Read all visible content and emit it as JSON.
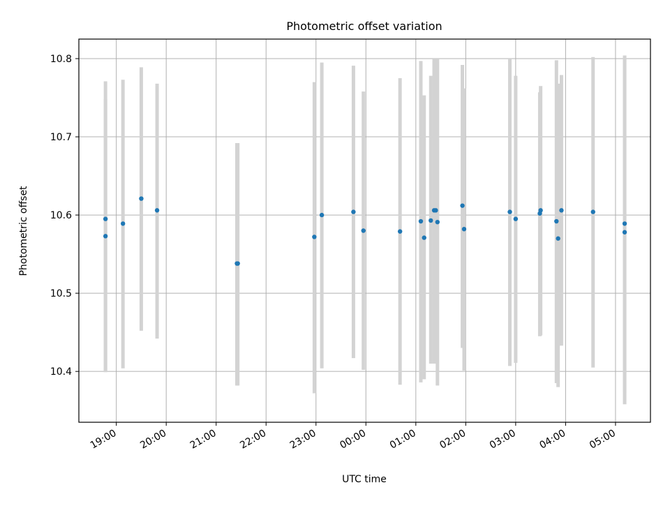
{
  "chart_data": {
    "type": "scatter",
    "title": "Photometric offset variation",
    "xlabel": "UTC time",
    "ylabel": "Photometric offset",
    "x_ticks": [
      "19:00",
      "20:00",
      "21:00",
      "22:00",
      "23:00",
      "00:00",
      "01:00",
      "02:00",
      "03:00",
      "04:00",
      "05:00"
    ],
    "y_ticks": [
      "10.4",
      "10.5",
      "10.6",
      "10.7",
      "10.8"
    ],
    "ylim": [
      10.335,
      10.825
    ],
    "xlim": [
      "18:15",
      "05:42"
    ],
    "grid": true,
    "marker_color": "#1f77b4",
    "errorbar_color": "#d3d3d3",
    "points": [
      {
        "t": "18:47",
        "y": 10.573,
        "lo": 10.399,
        "hi": 10.771
      },
      {
        "t": "18:47",
        "y": 10.595,
        "lo": 10.4,
        "hi": 10.748
      },
      {
        "t": "19:08",
        "y": 10.589,
        "lo": 10.404,
        "hi": 10.773
      },
      {
        "t": "19:30",
        "y": 10.621,
        "lo": 10.452,
        "hi": 10.789
      },
      {
        "t": "19:49",
        "y": 10.606,
        "lo": 10.442,
        "hi": 10.768
      },
      {
        "t": "21:25",
        "y": 10.538,
        "lo": 10.382,
        "hi": 10.692
      },
      {
        "t": "21:26",
        "y": 10.538,
        "lo": 10.382,
        "hi": 10.692
      },
      {
        "t": "22:58",
        "y": 10.572,
        "lo": 10.372,
        "hi": 10.77
      },
      {
        "t": "23:07",
        "y": 10.6,
        "lo": 10.404,
        "hi": 10.795
      },
      {
        "t": "23:45",
        "y": 10.604,
        "lo": 10.417,
        "hi": 10.791
      },
      {
        "t": "23:57",
        "y": 10.58,
        "lo": 10.402,
        "hi": 10.758
      },
      {
        "t": "00:41",
        "y": 10.579,
        "lo": 10.383,
        "hi": 10.775
      },
      {
        "t": "01:06",
        "y": 10.592,
        "lo": 10.386,
        "hi": 10.797
      },
      {
        "t": "01:10",
        "y": 10.571,
        "lo": 10.39,
        "hi": 10.753
      },
      {
        "t": "01:18",
        "y": 10.593,
        "lo": 10.41,
        "hi": 10.778
      },
      {
        "t": "01:22",
        "y": 10.606,
        "lo": 10.41,
        "hi": 10.8
      },
      {
        "t": "01:24",
        "y": 10.606,
        "lo": 10.412,
        "hi": 10.8
      },
      {
        "t": "01:26",
        "y": 10.591,
        "lo": 10.382,
        "hi": 10.8
      },
      {
        "t": "01:56",
        "y": 10.612,
        "lo": 10.43,
        "hi": 10.792
      },
      {
        "t": "01:58",
        "y": 10.582,
        "lo": 10.401,
        "hi": 10.762
      },
      {
        "t": "02:53",
        "y": 10.604,
        "lo": 10.407,
        "hi": 10.8
      },
      {
        "t": "03:00",
        "y": 10.595,
        "lo": 10.411,
        "hi": 10.778
      },
      {
        "t": "03:29",
        "y": 10.602,
        "lo": 10.445,
        "hi": 10.757
      },
      {
        "t": "03:30",
        "y": 10.606,
        "lo": 10.446,
        "hi": 10.765
      },
      {
        "t": "03:49",
        "y": 10.592,
        "lo": 10.385,
        "hi": 10.798
      },
      {
        "t": "03:51",
        "y": 10.57,
        "lo": 10.38,
        "hi": 10.768
      },
      {
        "t": "03:55",
        "y": 10.606,
        "lo": 10.433,
        "hi": 10.779
      },
      {
        "t": "04:33",
        "y": 10.604,
        "lo": 10.405,
        "hi": 10.802
      },
      {
        "t": "05:11",
        "y": 10.589,
        "lo": 10.373,
        "hi": 10.804
      },
      {
        "t": "05:11",
        "y": 10.578,
        "lo": 10.358,
        "hi": 10.8
      }
    ]
  }
}
